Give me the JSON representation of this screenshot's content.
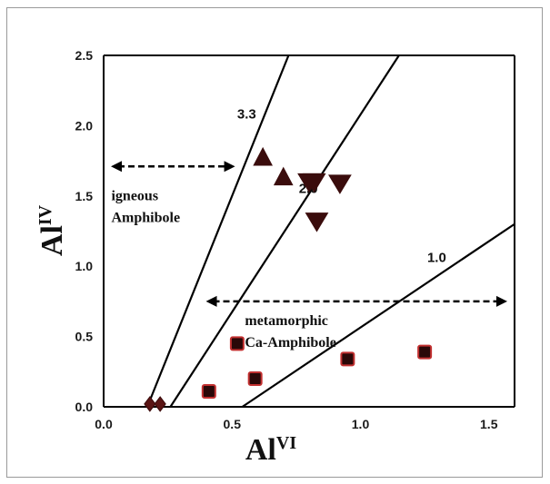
{
  "chart_data": {
    "type": "scatter",
    "x_axis": {
      "label_main": "Al",
      "label_sup": "VI",
      "range": [
        0,
        1.6
      ],
      "ticks": [
        "0.0",
        "0.5",
        "1.0",
        "1.5"
      ],
      "tick_values": [
        0,
        0.5,
        1.0,
        1.5
      ]
    },
    "y_axis": {
      "label_main": "Al",
      "label_sup": "IV",
      "range": [
        0,
        2.5
      ],
      "ticks": [
        "0.0",
        "0.5",
        "1.0",
        "1.5",
        "2.0",
        "2.5"
      ],
      "tick_values": [
        0,
        0.5,
        1.0,
        1.5,
        2.0,
        2.5
      ]
    },
    "grid": false,
    "reference_lines": [
      {
        "label": "3.3",
        "from": [
          0.17,
          0
        ],
        "to": [
          0.72,
          2.5
        ],
        "label_at": [
          0.52,
          2.05
        ]
      },
      {
        "label": "2.0",
        "from": [
          0.26,
          0
        ],
        "to": [
          1.15,
          2.5
        ],
        "label_at": [
          0.76,
          1.52
        ]
      },
      {
        "label": "1.0",
        "from": [
          0.54,
          0
        ],
        "to": [
          1.6,
          1.3
        ],
        "label_at": [
          1.26,
          1.03
        ]
      }
    ],
    "annotations": [
      {
        "id": "igneous",
        "lines": [
          "igneous",
          "Amphibole"
        ],
        "arrow": [
          [
            0.0,
            1.71
          ],
          [
            0.54,
            1.71
          ]
        ],
        "text_at": [
          0.03,
          1.47
        ]
      },
      {
        "id": "metamorphic",
        "lines": [
          "metamorphic",
          "Ca-Amphibole"
        ],
        "arrow": [
          [
            0.37,
            0.75
          ],
          [
            1.6,
            0.75
          ]
        ],
        "text_at": [
          0.55,
          0.58
        ]
      }
    ],
    "series": [
      {
        "marker": "diamond",
        "color": "#5a1414",
        "stroke": "#3a0a0a",
        "points": [
          [
            0.18,
            0.02
          ],
          [
            0.22,
            0.02
          ]
        ]
      },
      {
        "marker": "square",
        "color": "#2a0808",
        "stroke": "#c23030",
        "points": [
          [
            0.41,
            0.11
          ],
          [
            0.52,
            0.45
          ],
          [
            0.59,
            0.2
          ],
          [
            0.95,
            0.34
          ],
          [
            1.25,
            0.39
          ]
        ]
      },
      {
        "marker": "triangle-up",
        "color": "#3a0c0c",
        "stroke": "#3a0c0c",
        "points": [
          [
            0.62,
            1.77
          ],
          [
            0.7,
            1.63
          ]
        ]
      },
      {
        "marker": "triangle-down",
        "color": "#3a0c0c",
        "stroke": "#3a0c0c",
        "points": [
          [
            0.8,
            1.6
          ],
          [
            0.82,
            1.6
          ],
          [
            0.92,
            1.59
          ],
          [
            0.83,
            1.32
          ]
        ]
      }
    ]
  }
}
